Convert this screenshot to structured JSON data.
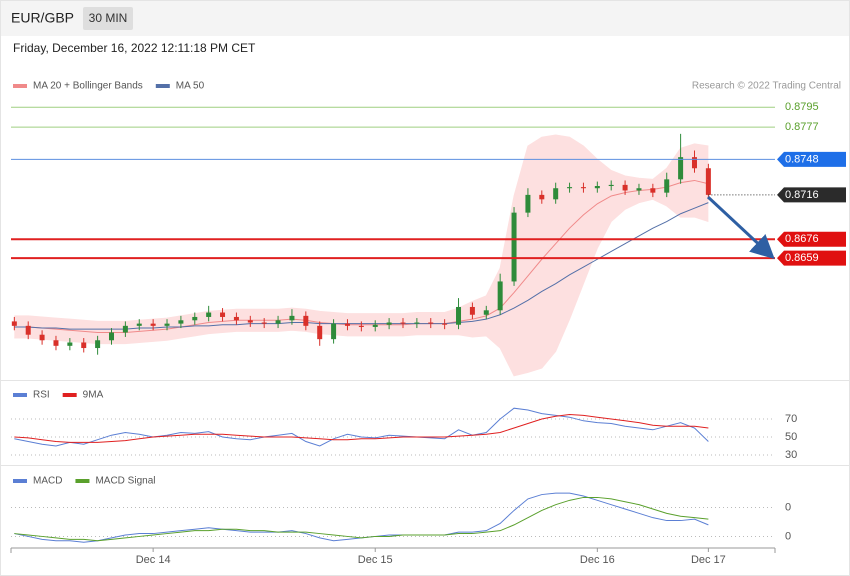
{
  "header": {
    "symbol": "EUR/GBP",
    "interval": "30 MIN",
    "timestamp": "Friday, December 16, 2022 12:11:18 PM CET",
    "credit": "Research © 2022 Trading Central"
  },
  "chart_data": [
    {
      "type": "candlestick",
      "x": [
        13.375,
        13.4375,
        13.5,
        13.5625,
        13.625,
        13.6875,
        13.75,
        13.8125,
        13.875,
        13.9375,
        14,
        14.0625,
        14.125,
        14.1875,
        14.25,
        14.3125,
        14.375,
        14.4375,
        14.5,
        14.5625,
        14.625,
        14.6875,
        14.75,
        14.8125,
        14.875,
        14.9375,
        15,
        15.0625,
        15.125,
        15.1875,
        15.25,
        15.3125,
        15.375,
        15.4375,
        15.5,
        15.5625,
        15.625,
        15.6875,
        15.75,
        15.8125,
        15.875,
        15.9375,
        16,
        16.0625,
        16.125,
        16.1875,
        16.25,
        16.3125,
        16.375,
        16.4375,
        16.5
      ],
      "open": [
        0.8602,
        0.8598,
        0.859,
        0.8585,
        0.858,
        0.8583,
        0.8578,
        0.8585,
        0.8592,
        0.8598,
        0.86,
        0.8598,
        0.86,
        0.8603,
        0.8606,
        0.861,
        0.8606,
        0.8603,
        0.8601,
        0.86,
        0.8603,
        0.8607,
        0.8598,
        0.8586,
        0.86,
        0.8598,
        0.8597,
        0.8599,
        0.8601,
        0.86,
        0.8601,
        0.86,
        0.8599,
        0.8615,
        0.8608,
        0.8612,
        0.8638,
        0.87,
        0.8716,
        0.8712,
        0.8722,
        0.8723,
        0.8722,
        0.8724,
        0.8725,
        0.872,
        0.8722,
        0.8718,
        0.873,
        0.875,
        0.874
      ],
      "high": [
        0.8606,
        0.8602,
        0.8594,
        0.8589,
        0.8587,
        0.8587,
        0.8589,
        0.8596,
        0.8602,
        0.8604,
        0.8604,
        0.8604,
        0.8607,
        0.861,
        0.8616,
        0.8614,
        0.861,
        0.8607,
        0.8605,
        0.8607,
        0.8613,
        0.8611,
        0.8602,
        0.8604,
        0.8604,
        0.8602,
        0.8603,
        0.8605,
        0.8605,
        0.8605,
        0.8605,
        0.8604,
        0.8623,
        0.8619,
        0.8616,
        0.8645,
        0.8705,
        0.8722,
        0.872,
        0.8727,
        0.8727,
        0.8727,
        0.8728,
        0.8729,
        0.8729,
        0.8726,
        0.8726,
        0.8736,
        0.8771,
        0.8756,
        0.8744
      ],
      "low": [
        0.8594,
        0.8586,
        0.8581,
        0.8576,
        0.8576,
        0.8574,
        0.8572,
        0.8581,
        0.8588,
        0.8594,
        0.8594,
        0.8594,
        0.8596,
        0.8599,
        0.8602,
        0.8602,
        0.8599,
        0.8597,
        0.8596,
        0.8596,
        0.8599,
        0.8594,
        0.858,
        0.8582,
        0.8594,
        0.8593,
        0.8593,
        0.8595,
        0.8596,
        0.8596,
        0.8596,
        0.8595,
        0.8595,
        0.8604,
        0.8604,
        0.8608,
        0.8634,
        0.8696,
        0.8708,
        0.8708,
        0.8718,
        0.8718,
        0.8718,
        0.872,
        0.8716,
        0.8716,
        0.8714,
        0.8714,
        0.8726,
        0.8736,
        0.8712
      ],
      "close": [
        0.8598,
        0.859,
        0.8585,
        0.858,
        0.8583,
        0.8578,
        0.8585,
        0.8592,
        0.8598,
        0.86,
        0.8598,
        0.86,
        0.8603,
        0.8606,
        0.861,
        0.8606,
        0.8603,
        0.8601,
        0.86,
        0.8603,
        0.8607,
        0.8598,
        0.8586,
        0.86,
        0.8598,
        0.8597,
        0.8599,
        0.8601,
        0.86,
        0.8601,
        0.86,
        0.8599,
        0.8615,
        0.8608,
        0.8612,
        0.8638,
        0.87,
        0.8716,
        0.8712,
        0.8722,
        0.8723,
        0.8722,
        0.8724,
        0.8725,
        0.872,
        0.8722,
        0.8718,
        0.873,
        0.875,
        0.874,
        0.8716
      ],
      "up_color": "#2e8b3a",
      "down_color": "#d9302a",
      "series": [
        {
          "name": "MA 20 + Bollinger Bands",
          "color": "#f08a8a",
          "band_color": "#fde0e0",
          "values": [
            0.8597,
            0.8597,
            0.8596,
            0.8595,
            0.8594,
            0.8593,
            0.8592,
            0.8592,
            0.8592,
            0.8593,
            0.8594,
            0.8595,
            0.8597,
            0.8599,
            0.8601,
            0.8602,
            0.8603,
            0.8603,
            0.8603,
            0.8603,
            0.8604,
            0.8603,
            0.8601,
            0.86,
            0.8599,
            0.8599,
            0.8599,
            0.8599,
            0.8599,
            0.86,
            0.86,
            0.86,
            0.8602,
            0.8604,
            0.8607,
            0.8614,
            0.8628,
            0.8643,
            0.8658,
            0.8672,
            0.8686,
            0.8698,
            0.8708,
            0.8715,
            0.8718,
            0.872,
            0.8721,
            0.8723,
            0.8727,
            0.8729,
            0.8726
          ],
          "upper": [
            0.8607,
            0.8607,
            0.8606,
            0.8605,
            0.8604,
            0.8603,
            0.8602,
            0.8602,
            0.8602,
            0.8603,
            0.8604,
            0.8605,
            0.8607,
            0.8609,
            0.8611,
            0.8612,
            0.8613,
            0.8613,
            0.8613,
            0.8613,
            0.8614,
            0.8613,
            0.8611,
            0.861,
            0.8609,
            0.8609,
            0.8609,
            0.8609,
            0.8609,
            0.861,
            0.861,
            0.861,
            0.8614,
            0.862,
            0.8625,
            0.865,
            0.8715,
            0.876,
            0.8768,
            0.877,
            0.8768,
            0.876,
            0.8748,
            0.8738,
            0.8733,
            0.8731,
            0.873,
            0.874,
            0.8758,
            0.8762,
            0.876
          ],
          "lower": [
            0.8587,
            0.8587,
            0.8586,
            0.8585,
            0.8584,
            0.8583,
            0.8582,
            0.8582,
            0.8582,
            0.8583,
            0.8584,
            0.8585,
            0.8587,
            0.8589,
            0.8591,
            0.8592,
            0.8593,
            0.8593,
            0.8593,
            0.8593,
            0.8594,
            0.8593,
            0.8591,
            0.859,
            0.8589,
            0.8589,
            0.8589,
            0.8589,
            0.8589,
            0.859,
            0.859,
            0.859,
            0.859,
            0.8588,
            0.8589,
            0.8578,
            0.8553,
            0.8556,
            0.856,
            0.8575,
            0.8604,
            0.8636,
            0.8668,
            0.8692,
            0.8703,
            0.8709,
            0.8712,
            0.8706,
            0.8696,
            0.8696,
            0.8692
          ]
        },
        {
          "name": "MA 50",
          "color": "#5470a8",
          "values": [
            0.8597,
            0.8597,
            0.8596,
            0.8596,
            0.8595,
            0.8595,
            0.8595,
            0.8595,
            0.8595,
            0.8596,
            0.8596,
            0.8597,
            0.8597,
            0.8598,
            0.8598,
            0.8599,
            0.8599,
            0.86,
            0.86,
            0.86,
            0.8601,
            0.8601,
            0.86,
            0.86,
            0.86,
            0.86,
            0.86,
            0.86,
            0.86,
            0.86,
            0.86,
            0.86,
            0.8601,
            0.8602,
            0.8604,
            0.8608,
            0.8614,
            0.8621,
            0.8629,
            0.8636,
            0.8644,
            0.8651,
            0.8658,
            0.8665,
            0.8672,
            0.8679,
            0.8686,
            0.8692,
            0.8699,
            0.8704,
            0.8709
          ]
        }
      ],
      "levels": [
        {
          "value": 0.8795,
          "color": "#9fcf80",
          "text_color": "#5aa02c"
        },
        {
          "value": 0.8777,
          "color": "#9fcf80",
          "text_color": "#5aa02c"
        },
        {
          "value": 0.8748,
          "color": "#5b8fe0",
          "tag_color": "#1e6fe8"
        },
        {
          "value": 0.8716,
          "color": "#333333",
          "tag_color": "#2b2b2b",
          "dotted": true
        },
        {
          "value": 0.8676,
          "color": "#e02020",
          "tag_color": "#e01010"
        },
        {
          "value": 0.8659,
          "color": "#e02020",
          "tag_color": "#e01010"
        }
      ],
      "xlim": [
        13.36,
        16.8
      ],
      "ylim": [
        0.8551,
        0.8806
      ]
    },
    {
      "type": "line",
      "x": [
        13.375,
        13.4375,
        13.5,
        13.5625,
        13.625,
        13.6875,
        13.75,
        13.8125,
        13.875,
        13.9375,
        14,
        14.0625,
        14.125,
        14.1875,
        14.25,
        14.3125,
        14.375,
        14.4375,
        14.5,
        14.5625,
        14.625,
        14.6875,
        14.75,
        14.8125,
        14.875,
        14.9375,
        15,
        15.0625,
        15.125,
        15.1875,
        15.25,
        15.3125,
        15.375,
        15.4375,
        15.5,
        15.5625,
        15.625,
        15.6875,
        15.75,
        15.8125,
        15.875,
        15.9375,
        16,
        16.0625,
        16.125,
        16.1875,
        16.25,
        16.3125,
        16.375,
        16.4375,
        16.5
      ],
      "series": [
        {
          "name": "RSI",
          "color": "#5b7fd4",
          "values": [
            48,
            45,
            42,
            40,
            44,
            42,
            47,
            52,
            55,
            53,
            50,
            52,
            55,
            54,
            56,
            50,
            48,
            47,
            50,
            52,
            54,
            45,
            40,
            48,
            53,
            50,
            49,
            52,
            51,
            50,
            49,
            48,
            58,
            52,
            55,
            70,
            82,
            80,
            76,
            74,
            72,
            68,
            66,
            65,
            62,
            60,
            58,
            62,
            66,
            60,
            45
          ]
        },
        {
          "name": "9MA",
          "color": "#e02020",
          "values": [
            50,
            49,
            47,
            45,
            44,
            44,
            44,
            45,
            46,
            48,
            50,
            51,
            52,
            53,
            53,
            53,
            52,
            51,
            50,
            50,
            50,
            49,
            48,
            47,
            47,
            48,
            48,
            49,
            50,
            50,
            50,
            50,
            51,
            52,
            53,
            55,
            60,
            65,
            70,
            73,
            75,
            74,
            72,
            70,
            68,
            66,
            63,
            62,
            62,
            62,
            60
          ]
        }
      ],
      "xlim": [
        13.36,
        16.8
      ],
      "ylim": [
        20,
        100
      ],
      "yticks": [
        30,
        50,
        70
      ]
    },
    {
      "type": "line",
      "x": [
        13.375,
        13.4375,
        13.5,
        13.5625,
        13.625,
        13.6875,
        13.75,
        13.8125,
        13.875,
        13.9375,
        14,
        14.0625,
        14.125,
        14.1875,
        14.25,
        14.3125,
        14.375,
        14.4375,
        14.5,
        14.5625,
        14.625,
        14.6875,
        14.75,
        14.8125,
        14.875,
        14.9375,
        15,
        15.0625,
        15.125,
        15.1875,
        15.25,
        15.3125,
        15.375,
        15.4375,
        15.5,
        15.5625,
        15.625,
        15.6875,
        15.75,
        15.8125,
        15.875,
        15.9375,
        16,
        16.0625,
        16.125,
        16.1875,
        16.25,
        16.3125,
        16.375,
        16.4375,
        16.5
      ],
      "series": [
        {
          "name": "MACD",
          "color": "#5b7fd4",
          "values": [
            0.0002,
            0.0,
            -0.0002,
            -0.0003,
            -0.0003,
            -0.0004,
            -0.0003,
            -0.0001,
            0.0001,
            0.0002,
            0.0002,
            0.0003,
            0.0004,
            0.0005,
            0.0006,
            0.0005,
            0.0004,
            0.0003,
            0.0003,
            0.0003,
            0.0004,
            0.0002,
            -0.0001,
            -0.0003,
            -0.0002,
            -0.0001,
            0.0,
            0.0001,
            0.0001,
            0.0001,
            0.0001,
            0.0001,
            0.0003,
            0.0003,
            0.0004,
            0.0009,
            0.0018,
            0.0026,
            0.0029,
            0.003,
            0.003,
            0.0028,
            0.0025,
            0.0022,
            0.0019,
            0.0016,
            0.0013,
            0.0011,
            0.0011,
            0.0012,
            0.0008
          ]
        },
        {
          "name": "MACD Signal",
          "color": "#5aa02c",
          "values": [
            0.0002,
            0.0001,
            0.0,
            -0.0001,
            -0.0002,
            -0.0002,
            -0.0003,
            -0.0002,
            -0.0001,
            0.0,
            0.0001,
            0.0002,
            0.0003,
            0.0004,
            0.0004,
            0.0005,
            0.0005,
            0.0004,
            0.0004,
            0.0003,
            0.0003,
            0.0003,
            0.0002,
            0.0001,
            0.0,
            -0.0001,
            0.0,
            0.0,
            0.0001,
            0.0001,
            0.0001,
            0.0001,
            0.0002,
            0.0002,
            0.0003,
            0.0004,
            0.0008,
            0.0013,
            0.0018,
            0.0022,
            0.0025,
            0.0027,
            0.0027,
            0.0026,
            0.0024,
            0.0022,
            0.0019,
            0.0016,
            0.0014,
            0.0013,
            0.0012
          ]
        }
      ],
      "xlim": [
        13.36,
        16.8
      ],
      "ylim": [
        -0.0008,
        0.0046
      ],
      "yticks": [
        0,
        {
          "value": 0.002,
          "label": "0"
        }
      ],
      "xticks": [
        {
          "value": 14,
          "label": "Dec 14"
        },
        {
          "value": 15,
          "label": "Dec 15"
        },
        {
          "value": 16,
          "label": "Dec 16"
        },
        {
          "value": 16.5,
          "label": "Dec 17"
        }
      ]
    }
  ]
}
